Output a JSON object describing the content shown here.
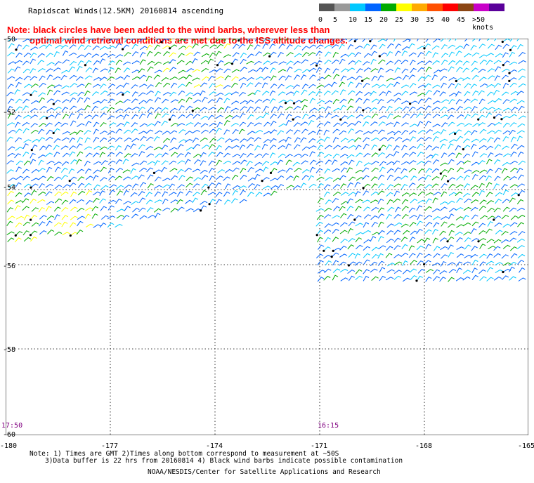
{
  "title": "Rapidscat Winds(12.5KM) 20160814 ascending",
  "note": {
    "line1": "Note: black circles have been added to the wind barbs, wherever less than",
    "line2": "optimal wind retrieval conditions are met due to the ISS altitude changes."
  },
  "legend": {
    "labels": [
      "0",
      "5",
      "10",
      "15",
      "20",
      "25",
      "30",
      "35",
      "40",
      "45",
      ">50 knots"
    ],
    "colors": [
      "#555555",
      "#9a9a9a",
      "#00c8ff",
      "#0064ff",
      "#00aa00",
      "#ffff00",
      "#ffaa00",
      "#ff5000",
      "#ff0000",
      "#8b4513",
      "#c800c8",
      "#5a009a"
    ]
  },
  "axes": {
    "lat_labels": [
      "-50",
      "-52",
      "-54",
      "-56",
      "-58",
      "-60"
    ],
    "lon_labels": [
      "-180",
      "-177",
      "-174",
      "-171",
      "-168",
      "-165"
    ]
  },
  "times": {
    "left": "17:50",
    "right": "16:15"
  },
  "footer": {
    "line1": "Note: 1) Times are GMT 2)Times along bottom correspond to measurement at ~50S",
    "line2": "3)Data buffer is 22 hrs from 20160814 4) Black wind barbs indicate possible contamination",
    "line3": "NOAA/NESDIS/Center for Satellite Applications and Research"
  }
}
